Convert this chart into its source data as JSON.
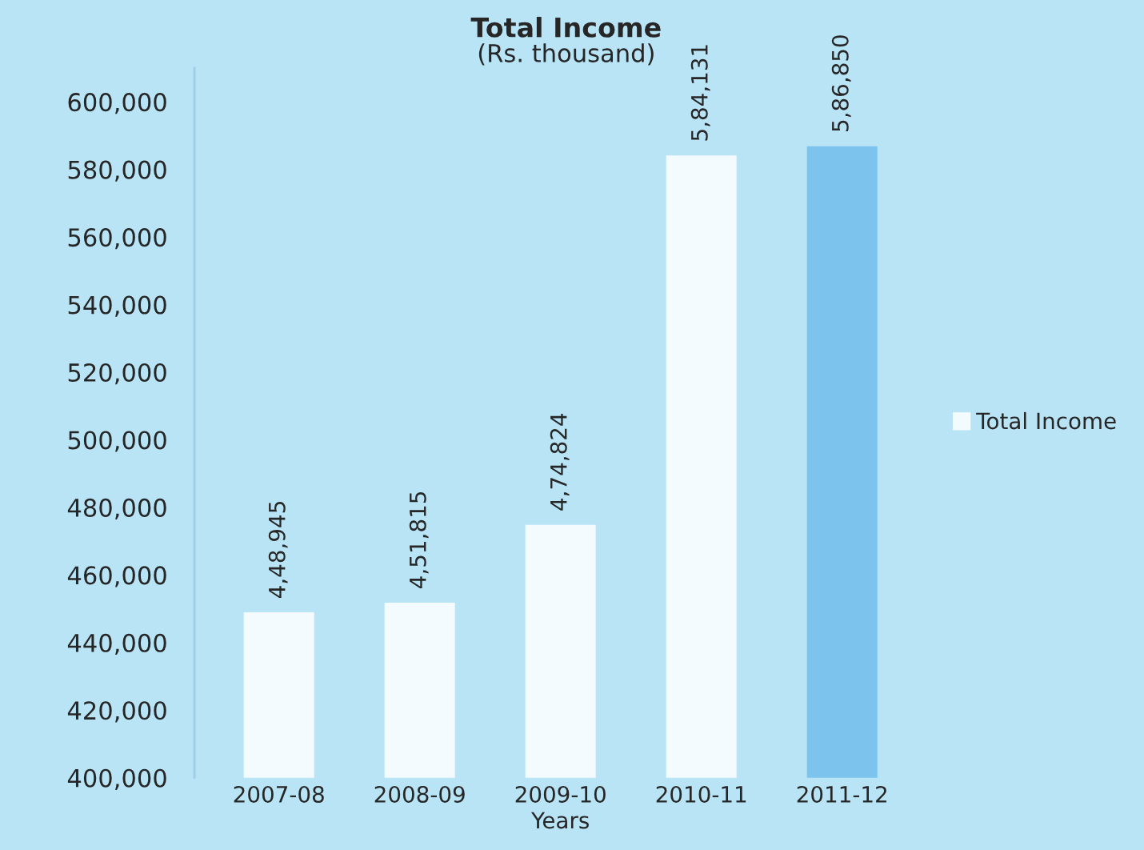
{
  "chart_data": {
    "type": "bar",
    "title": "Total Income",
    "subtitle": "(Rs. thousand)",
    "xlabel": "Years",
    "categories": [
      "2007-08",
      "2008-09",
      "2009-10",
      "2010-11",
      "2011-12"
    ],
    "series": [
      {
        "name": "Total Income",
        "color": "#f4fbfe",
        "colors": [
          "#f4fbfe",
          "#f4fbfe",
          "#f4fbfe",
          "#f4fbfe",
          "#7cc4ee"
        ],
        "values": [
          448945,
          451815,
          474824,
          584131,
          586850
        ],
        "value_labels": [
          "4,48,945",
          "4,51,815",
          "4,74,824",
          "5,84,131",
          "5,86,850"
        ]
      }
    ],
    "ylim": [
      400000,
      610000
    ],
    "yticks": [
      {
        "value": 400000,
        "label": "400,000"
      },
      {
        "value": 420000,
        "label": "420,000"
      },
      {
        "value": 440000,
        "label": "440,000"
      },
      {
        "value": 460000,
        "label": "460,000"
      },
      {
        "value": 480000,
        "label": "480,000"
      },
      {
        "value": 500000,
        "label": "500,000"
      },
      {
        "value": 520000,
        "label": "520,000"
      },
      {
        "value": 540000,
        "label": "540,000"
      },
      {
        "value": 560000,
        "label": "560,000"
      },
      {
        "value": 580000,
        "label": "580,000"
      },
      {
        "value": 600000,
        "label": "600,000"
      }
    ],
    "legend": "right"
  }
}
